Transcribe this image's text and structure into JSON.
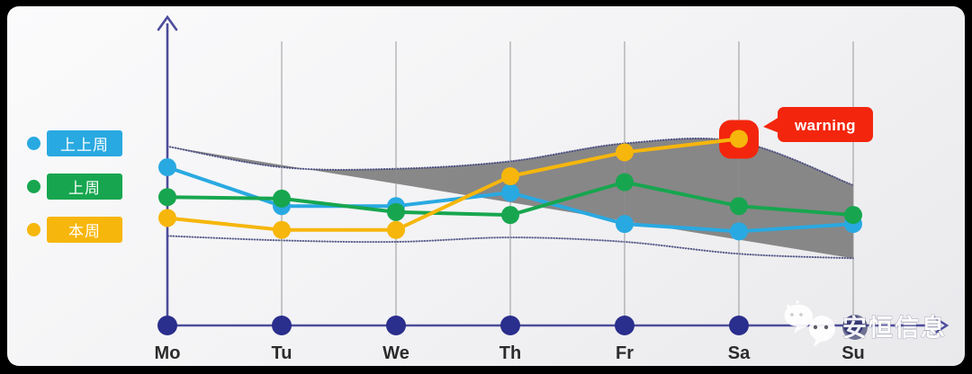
{
  "legend": {
    "items": [
      {
        "label": "上上周",
        "color": "#29A9E1"
      },
      {
        "label": "上周",
        "color": "#17A64F"
      },
      {
        "label": "本周",
        "color": "#F6B60B"
      }
    ]
  },
  "watermark": {
    "icon": "wechat-icon",
    "text": "安恒信息"
  },
  "chart_data": {
    "type": "line",
    "title": "",
    "xlabel": "",
    "ylabel": "",
    "categories": [
      "Mo",
      "Tu",
      "We",
      "Th",
      "Fr",
      "Sa",
      "Su"
    ],
    "series": [
      {
        "name": "上上周",
        "color": "#29A9E1",
        "values": [
          53,
          40,
          40,
          44.5,
          34,
          31.5,
          34
        ]
      },
      {
        "name": "上周",
        "color": "#17A64F",
        "values": [
          43,
          42.5,
          38,
          37,
          48,
          40,
          37
        ]
      },
      {
        "name": "本周",
        "color": "#F6B60B",
        "values": [
          36,
          32,
          32,
          50,
          58,
          62.5,
          null
        ]
      }
    ],
    "band": {
      "label": "normal-range-band",
      "fill_color": "#7E7E7E",
      "edge_color": "#3F4278",
      "top": [
        60,
        53,
        52.5,
        55,
        61,
        61.5,
        47
      ],
      "bottom": [
        30,
        28.5,
        28,
        29.5,
        28,
        24,
        22.5
      ]
    },
    "annotation": {
      "label": "warning",
      "category": "Sa",
      "series": "本周",
      "bubble_color": "#F3260D",
      "text_color": "#FFFFFF",
      "highlight_box_color": "#F3260D"
    },
    "axes": {
      "axis_color": "#4C4C9C",
      "day_dot_color": "#2A2E8C",
      "gridline_color": "#8E8E92",
      "label_color": "#2B2B2B",
      "x_axis_arrow": true,
      "y_axis_arrow": true,
      "y_tick_labels": []
    },
    "ylim": [
      0,
      100
    ],
    "legend_position": "left"
  }
}
